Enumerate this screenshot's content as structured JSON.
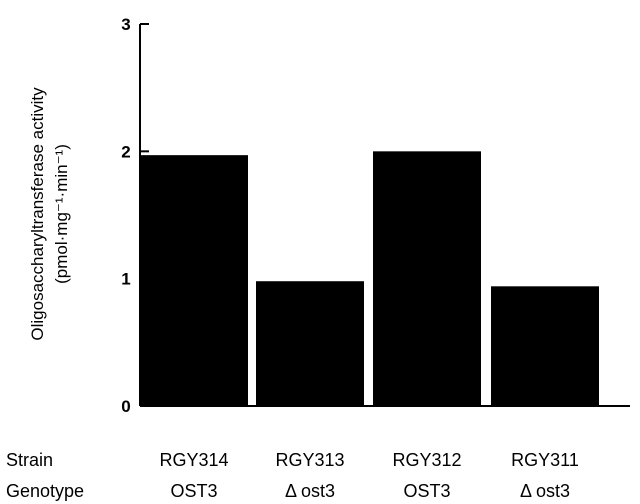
{
  "chart_data": {
    "type": "bar",
    "title": "",
    "xlabel": "",
    "ylabel": "Oligosaccharyltransferase activity",
    "ylabel_units": "(pmol·mg⁻¹·min⁻¹)",
    "ylim": [
      0,
      3
    ],
    "yticks": [
      "0",
      "1",
      "2",
      "3"
    ],
    "grid": false,
    "legend": "none",
    "bar_color": "#000000",
    "categories": [
      "RGY314",
      "RGY313",
      "RGY312",
      "RGY311"
    ],
    "values": [
      1.97,
      0.98,
      2.0,
      0.94
    ],
    "category_rows": [
      {
        "label": "Strain",
        "values": [
          "RGY314",
          "RGY313",
          "RGY312",
          "RGY311"
        ]
      },
      {
        "label": "Genotype",
        "values": [
          "OST3",
          "Δ ost3",
          "OST3",
          "Δ ost3"
        ]
      }
    ]
  }
}
